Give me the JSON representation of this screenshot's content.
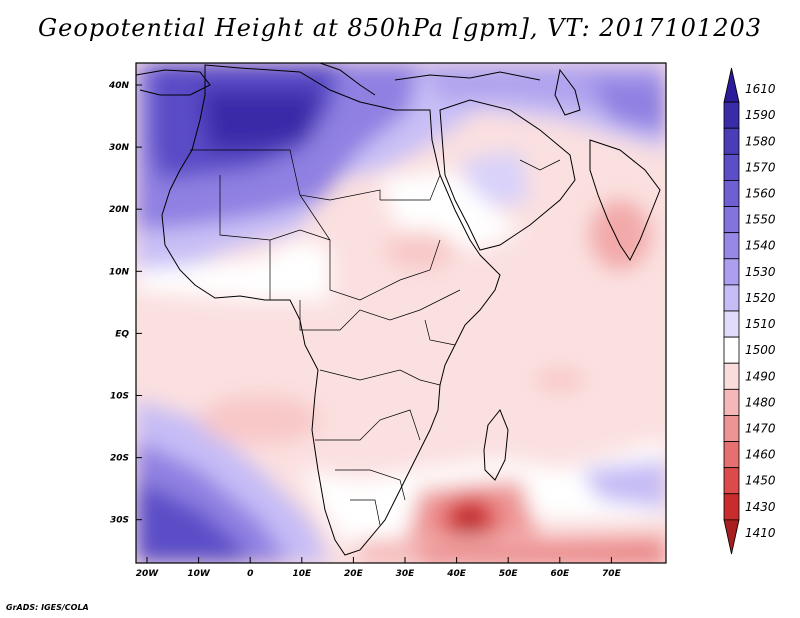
{
  "title": "Geopotential Height at 850hPa [gpm], VT: 2017101203",
  "footer": "GrADS: IGES/COLA",
  "lat_labels": [
    "40N",
    "30N",
    "20N",
    "10N",
    "EQ",
    "10S",
    "20S",
    "30S"
  ],
  "lon_labels": [
    "20W",
    "10W",
    "0",
    "10E",
    "20E",
    "30E",
    "40E",
    "50E",
    "60E",
    "70E"
  ],
  "colorbar": {
    "levels": [
      "1610",
      "1590",
      "1580",
      "1570",
      "1560",
      "1550",
      "1540",
      "1530",
      "1520",
      "1510",
      "1500",
      "1490",
      "1480",
      "1470",
      "1460",
      "1450",
      "1430",
      "1410"
    ],
    "colors": [
      "#2b1a99",
      "#3a2ba8",
      "#4b3cb8",
      "#5c4ec7",
      "#6e60d3",
      "#8273dd",
      "#9787e6",
      "#ad9eef",
      "#c6bcf6",
      "#e2dcfb",
      "#ffffff",
      "#fbdcdc",
      "#f5b7b7",
      "#ee9494",
      "#e67070",
      "#dc4b4b",
      "#c92c2c",
      "#a81d1d"
    ]
  },
  "colors": {
    "background_ocean": "#fbe0e0",
    "high_blue": "#3a2ba8",
    "low_red": "#c92c2c"
  }
}
